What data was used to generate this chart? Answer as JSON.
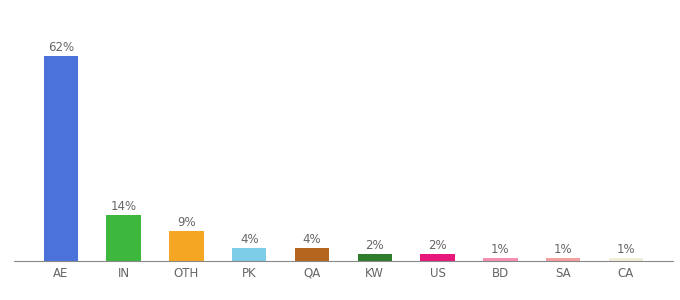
{
  "categories": [
    "AE",
    "IN",
    "OTH",
    "PK",
    "QA",
    "KW",
    "US",
    "BD",
    "SA",
    "CA"
  ],
  "values": [
    62,
    14,
    9,
    4,
    4,
    2,
    2,
    1,
    1,
    1
  ],
  "bar_colors": [
    "#4a72d9",
    "#3db83d",
    "#f5a623",
    "#7ecde8",
    "#b5651d",
    "#2d7d2d",
    "#e8187a",
    "#f48fb1",
    "#f4a0a0",
    "#f0edd8"
  ],
  "background_color": "#ffffff",
  "ylim": [
    0,
    68
  ],
  "label_fontsize": 8.5,
  "tick_fontsize": 8.5,
  "bar_width": 0.55
}
